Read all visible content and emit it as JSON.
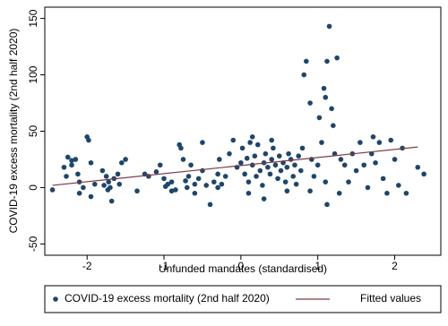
{
  "chart_data": {
    "type": "scatter",
    "xlabel": "Unfunded mandates (standardised)",
    "ylabel": "COVID-19 excess mortality (2nd half 2020)",
    "xlim": [
      -2.55,
      2.6
    ],
    "xticks": [
      -2,
      -1,
      0,
      1,
      2
    ],
    "ylim": [
      -60,
      160
    ],
    "yticks": [
      -50,
      0,
      50,
      100,
      150
    ],
    "legend": "bottom",
    "series": [
      {
        "name": "COVID-19 excess mortality (2nd half 2020)",
        "type": "scatter",
        "color": "#1a476f",
        "x": [
          -2.25,
          -2.2,
          -2.2,
          -2.15,
          -2.1,
          -2.1,
          -2.05,
          -2.0,
          -1.98,
          -1.95,
          -1.95,
          -1.9,
          -2.3,
          -2.45,
          -1.8,
          -1.75,
          -1.72,
          -1.7,
          -1.68,
          -1.65,
          -1.6,
          -1.58,
          -1.55,
          -1.5,
          -1.78,
          -1.73,
          -2.27,
          -2.12,
          -1.35,
          -1.25,
          -1.2,
          -1.1,
          -1.05,
          -1.0,
          -0.98,
          -0.95,
          -0.9,
          -0.85,
          -0.8,
          -0.78,
          -0.75,
          -0.72,
          -0.7,
          -0.68,
          -0.65,
          -0.6,
          -0.55,
          -0.5,
          -0.45,
          -0.4,
          -0.35,
          -0.3,
          -0.28,
          -0.25,
          -0.2,
          -0.15,
          -0.1,
          -0.05,
          0,
          0.02,
          0.05,
          0.08,
          0.1,
          0.12,
          0.15,
          0.18,
          0.2,
          0.22,
          0.25,
          0.28,
          0.3,
          0.32,
          0.35,
          0.38,
          0.4,
          0.42,
          0.45,
          0.48,
          0.5,
          0.52,
          0.55,
          0.58,
          0.6,
          0.62,
          0.65,
          0.68,
          0.7,
          0.72,
          0.75,
          0.78,
          0.8,
          0.82,
          0.85,
          0.9,
          0.92,
          0.95,
          1.0,
          1.02,
          1.05,
          1.08,
          1.1,
          1.12,
          1.15,
          1.18,
          1.2,
          1.22,
          1.25,
          1.12,
          1.28,
          1.1,
          1.3,
          1.35,
          1.4,
          1.45,
          1.5,
          1.55,
          1.6,
          1.65,
          1.7,
          1.72,
          1.75,
          1.8,
          1.85,
          1.9,
          1.95,
          2.0,
          2.05,
          2.1,
          2.15,
          2.3,
          2.38,
          -0.9,
          -0.6,
          -0.3,
          0.1,
          0.3,
          0.6,
          0.9,
          -0.5,
          0.15,
          0.4
        ],
        "values": [
          27,
          24,
          20,
          25,
          5,
          -5,
          0,
          45,
          42,
          22,
          -8,
          3,
          18,
          -2,
          15,
          10,
          5,
          0,
          -12,
          8,
          12,
          3,
          22,
          25,
          2,
          -2,
          10,
          12,
          -3,
          12,
          10,
          14,
          20,
          8,
          1,
          3,
          5,
          -2,
          38,
          35,
          25,
          6,
          0,
          10,
          20,
          3,
          8,
          15,
          2,
          -15,
          5,
          12,
          25,
          3,
          10,
          30,
          42,
          18,
          22,
          35,
          12,
          26,
          5,
          40,
          20,
          28,
          10,
          38,
          15,
          2,
          22,
          30,
          18,
          12,
          25,
          35,
          20,
          8,
          28,
          15,
          22,
          5,
          18,
          30,
          25,
          10,
          20,
          3,
          28,
          15,
          35,
          100,
          112,
          75,
          25,
          10,
          20,
          62,
          40,
          88,
          80,
          112,
          143,
          70,
          55,
          30,
          115,
          -15,
          -5,
          5,
          25,
          20,
          5,
          30,
          15,
          40,
          20,
          0,
          30,
          45,
          22,
          40,
          8,
          -5,
          42,
          25,
          2,
          35,
          -5,
          18,
          12,
          -3,
          -5,
          0,
          -5,
          -10,
          -3,
          -3,
          40,
          45,
          42
        ]
      },
      {
        "name": "Fitted values",
        "type": "line",
        "color": "#90353b",
        "x": [
          -2.45,
          2.3
        ],
        "values": [
          2,
          36
        ]
      }
    ]
  }
}
